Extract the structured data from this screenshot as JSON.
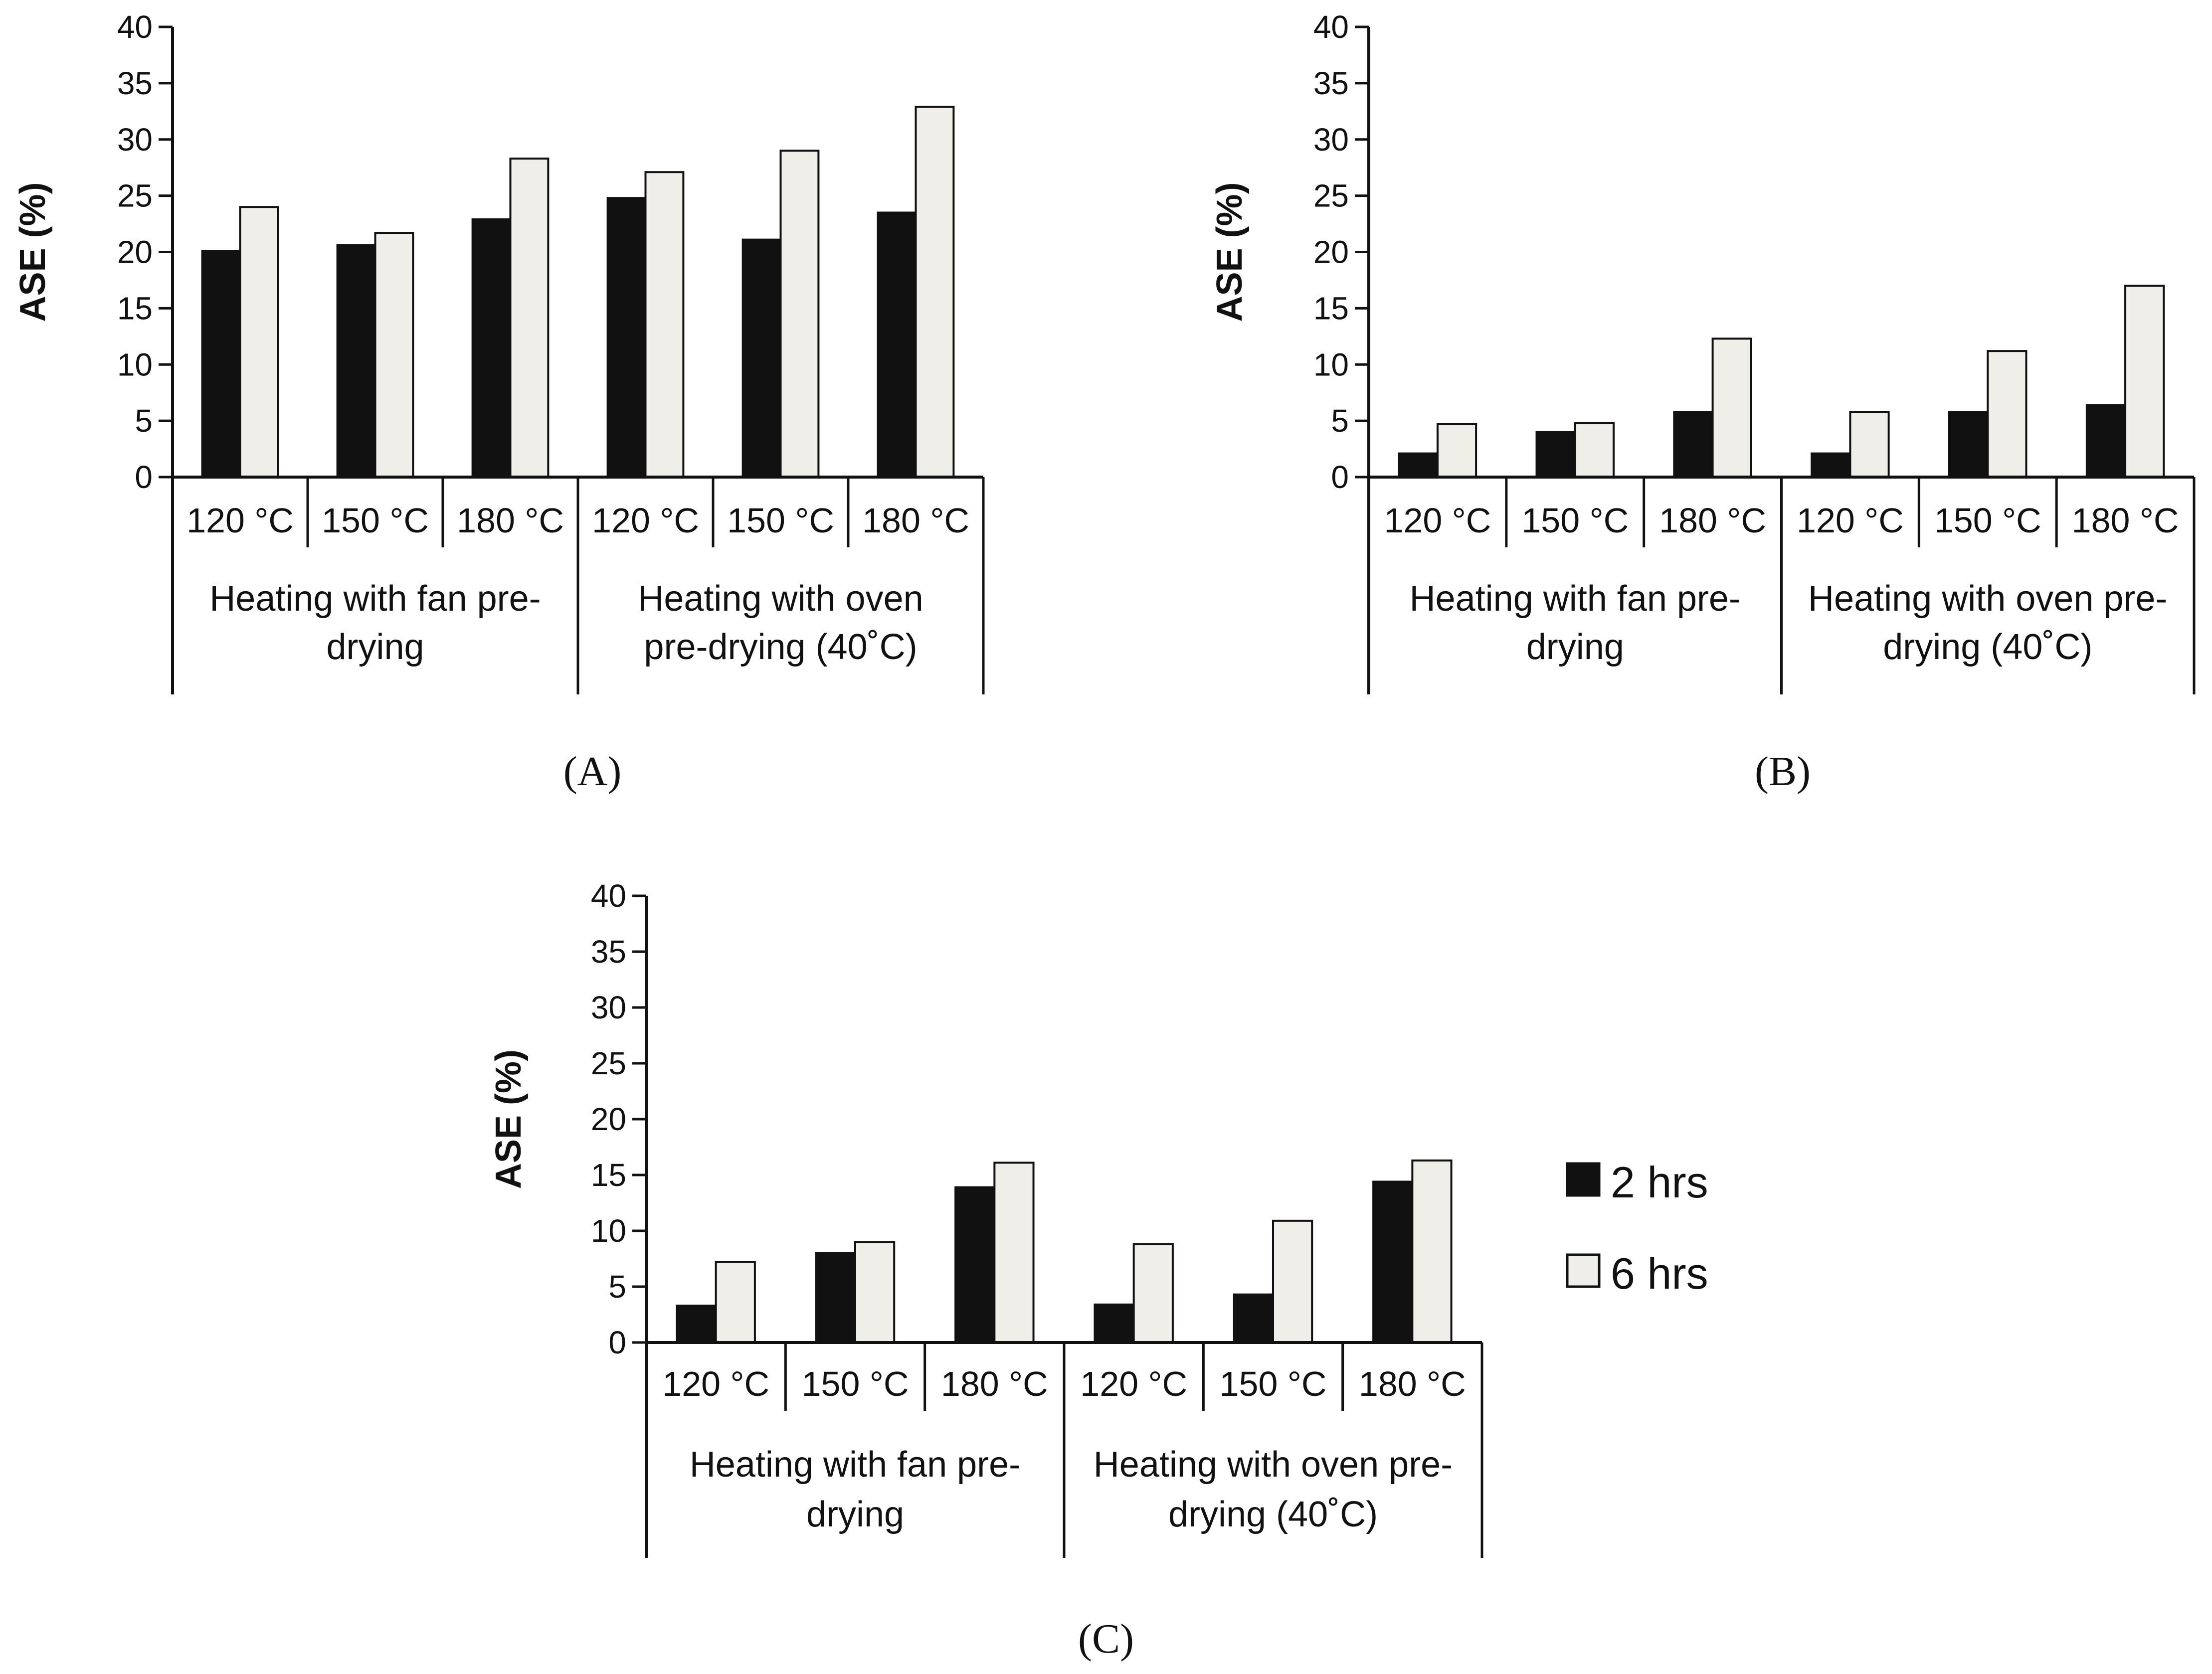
{
  "colors": {
    "series_2h": "#111111",
    "series_6h": "#efeee8",
    "stroke": "#111111"
  },
  "legend": [
    {
      "label": "2 hrs",
      "color": "#111111"
    },
    {
      "label": "6 hrs",
      "color": "#efeee8"
    }
  ],
  "chart_data": [
    {
      "type": "bar",
      "panel_label": "(A)",
      "ylabel": "ASE (%)",
      "ylim": [
        0,
        40
      ],
      "yticks": [
        0,
        5,
        10,
        15,
        20,
        25,
        30,
        35,
        40
      ],
      "categories": [
        "120 °C",
        "150 °C",
        "180 °C",
        "120 °C",
        "150 °C",
        "180 °C"
      ],
      "groups": [
        {
          "label_lines": [
            "Heating with fan pre-",
            "drying"
          ],
          "span": [
            0,
            3
          ]
        },
        {
          "label_lines": [
            "Heating with oven",
            "pre-drying  (40˚C)"
          ],
          "span": [
            3,
            6
          ]
        }
      ],
      "series": [
        {
          "name": "2 hrs",
          "values": [
            20.1,
            20.6,
            22.9,
            24.8,
            21.1,
            23.5
          ]
        },
        {
          "name": "6 hrs",
          "values": [
            24.0,
            21.7,
            28.3,
            27.1,
            29.0,
            32.9
          ]
        }
      ]
    },
    {
      "type": "bar",
      "panel_label": "(B)",
      "ylabel": "ASE (%)",
      "ylim": [
        0,
        40
      ],
      "yticks": [
        0,
        5,
        10,
        15,
        20,
        25,
        30,
        35,
        40
      ],
      "categories": [
        "120 °C",
        "150 °C",
        "180 °C",
        "120 °C",
        "150 °C",
        "180 °C"
      ],
      "groups": [
        {
          "label_lines": [
            "Heating with fan pre-",
            "drying"
          ],
          "span": [
            0,
            3
          ]
        },
        {
          "label_lines": [
            "Heating with oven pre-",
            "drying  (40˚C)"
          ],
          "span": [
            3,
            6
          ]
        }
      ],
      "series": [
        {
          "name": "2 hrs",
          "values": [
            2.1,
            4.0,
            5.8,
            2.1,
            5.8,
            6.4
          ]
        },
        {
          "name": "6 hrs",
          "values": [
            4.7,
            4.8,
            12.3,
            5.8,
            11.2,
            17.0
          ]
        }
      ]
    },
    {
      "type": "bar",
      "panel_label": "(C)",
      "ylabel": "ASE (%)",
      "ylim": [
        0,
        40
      ],
      "yticks": [
        0,
        5,
        10,
        15,
        20,
        25,
        30,
        35,
        40
      ],
      "categories": [
        "120 °C",
        "150 °C",
        "180 °C",
        "120 °C",
        "150 °C",
        "180 °C"
      ],
      "groups": [
        {
          "label_lines": [
            "Heating with fan pre-",
            "drying"
          ],
          "span": [
            0,
            3
          ]
        },
        {
          "label_lines": [
            "Heating with oven pre-",
            "drying  (40˚C)"
          ],
          "span": [
            3,
            6
          ]
        }
      ],
      "series": [
        {
          "name": "2 hrs",
          "values": [
            3.3,
            8.0,
            13.9,
            3.4,
            4.3,
            14.4
          ]
        },
        {
          "name": "6 hrs",
          "values": [
            7.2,
            9.0,
            16.1,
            8.8,
            10.9,
            16.3
          ]
        }
      ]
    }
  ]
}
